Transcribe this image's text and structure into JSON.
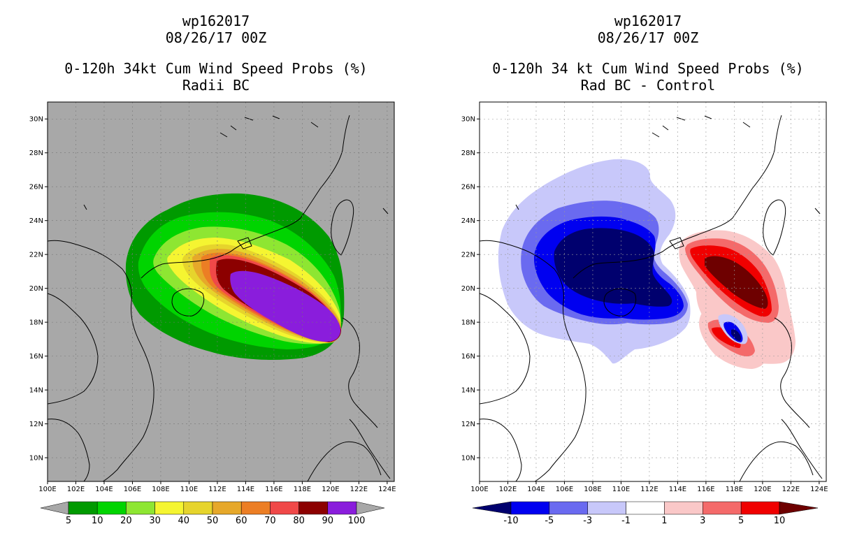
{
  "left": {
    "storm_id": "wp162017",
    "datetime": "08/26/17 00Z",
    "product": "0-120h 34kt Cum Wind Speed Probs (%)",
    "subtitle": "Radii BC",
    "background_color": "#a8a8a8",
    "colorbar": {
      "labels": [
        "5",
        "10",
        "20",
        "30",
        "40",
        "50",
        "60",
        "70",
        "80",
        "90",
        "100"
      ],
      "colors": [
        "#009a00",
        "#00d400",
        "#8ee632",
        "#f5f531",
        "#e6d42c",
        "#e6a82a",
        "#ec7e24",
        "#f04848",
        "#8c0000",
        "#8a1ddc"
      ],
      "under_color": "#a8a8a8",
      "over_color": "#a8a8a8"
    }
  },
  "right": {
    "storm_id": "wp162017",
    "datetime": "08/26/17 00Z",
    "product": "0-120h 34 kt Cum Wind Speed Probs (%)",
    "subtitle": "Rad BC - Control",
    "background_color": "#ffffff",
    "colorbar": {
      "labels": [
        "-10",
        "-5",
        "-3",
        "-1",
        "1",
        "3",
        "5",
        "10"
      ],
      "colors": [
        "#0000f0",
        "#6a6af0",
        "#c8c8fa",
        "#ffffff",
        "#fac8c8",
        "#f46a6a",
        "#f00000"
      ],
      "under_color": "#00006e",
      "over_color": "#6e0000"
    }
  },
  "axes": {
    "lat_labels": [
      "30N",
      "28N",
      "26N",
      "24N",
      "22N",
      "20N",
      "18N",
      "16N",
      "14N",
      "12N",
      "10N"
    ],
    "lon_labels": [
      "100E",
      "102E",
      "104E",
      "106E",
      "108E",
      "110E",
      "112E",
      "114E",
      "116E",
      "118E",
      "120E",
      "122E",
      "124E"
    ],
    "lat_values": [
      30,
      28,
      26,
      24,
      22,
      20,
      18,
      16,
      14,
      12,
      10
    ],
    "lon_values": [
      100,
      102,
      104,
      106,
      108,
      110,
      112,
      114,
      116,
      118,
      120,
      122,
      124
    ],
    "lon_range": [
      100,
      124.5
    ],
    "lat_range": [
      8.6,
      31
    ]
  }
}
